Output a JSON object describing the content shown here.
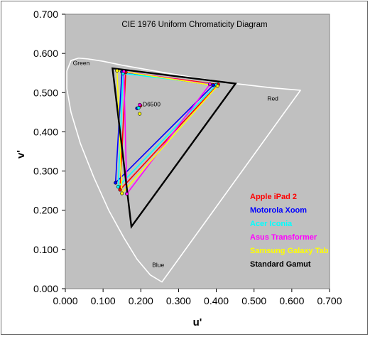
{
  "chart_data": {
    "type": "scatter",
    "title": "CIE 1976 Uniform Chromaticity Diagram",
    "xlabel": "u'",
    "ylabel": "v'",
    "xlim": [
      0.0,
      0.7
    ],
    "ylim": [
      0.0,
      0.7
    ],
    "x_ticks": [
      "0.000",
      "0.100",
      "0.200",
      "0.300",
      "0.400",
      "0.500",
      "0.600",
      "0.700"
    ],
    "y_ticks": [
      "0.000",
      "0.100",
      "0.200",
      "0.300",
      "0.400",
      "0.500",
      "0.600",
      "0.700"
    ],
    "plot_background": "#c0c0c0",
    "grid": false,
    "legend_position": "bottom-right",
    "annotations": [
      {
        "text": "Green",
        "x": 0.02,
        "y": 0.57
      },
      {
        "text": "Red",
        "x": 0.535,
        "y": 0.48
      },
      {
        "text": "Blue",
        "x": 0.23,
        "y": 0.055
      },
      {
        "text": "D6500",
        "x": 0.205,
        "y": 0.465
      }
    ],
    "spectral_locus": {
      "color": "#ffffff",
      "points": [
        [
          0.256,
          0.017
        ],
        [
          0.225,
          0.035
        ],
        [
          0.19,
          0.075
        ],
        [
          0.155,
          0.13
        ],
        [
          0.115,
          0.2
        ],
        [
          0.075,
          0.285
        ],
        [
          0.04,
          0.37
        ],
        [
          0.015,
          0.45
        ],
        [
          0.004,
          0.51
        ],
        [
          0.004,
          0.555
        ],
        [
          0.015,
          0.582
        ],
        [
          0.035,
          0.588
        ],
        [
          0.06,
          0.586
        ],
        [
          0.1,
          0.58
        ],
        [
          0.15,
          0.57
        ],
        [
          0.25,
          0.553
        ],
        [
          0.35,
          0.537
        ],
        [
          0.45,
          0.523
        ],
        [
          0.55,
          0.512
        ],
        [
          0.623,
          0.506
        ]
      ]
    },
    "series": [
      {
        "name": "Apple iPad 2",
        "color": "#ff0000",
        "points": [
          [
            0.405,
            0.521
          ],
          [
            0.145,
            0.252
          ],
          [
            0.16,
            0.552
          ]
        ],
        "white_point": [
          0.199,
          0.467
        ]
      },
      {
        "name": "Motorola Xoom",
        "color": "#0000ff",
        "points": [
          [
            0.392,
            0.519
          ],
          [
            0.133,
            0.27
          ],
          [
            0.15,
            0.553
          ]
        ],
        "white_point": [
          0.19,
          0.46
        ]
      },
      {
        "name": "Acer Iconia",
        "color": "#00ffff",
        "points": [
          [
            0.4,
            0.52
          ],
          [
            0.14,
            0.26
          ],
          [
            0.153,
            0.549
          ]
        ],
        "white_point": [
          0.194,
          0.461
        ]
      },
      {
        "name": "Asus Transformer",
        "color": "#ff00ff",
        "points": [
          [
            0.383,
            0.521
          ],
          [
            0.163,
            0.242
          ],
          [
            0.155,
            0.554
          ]
        ],
        "white_point": [
          0.197,
          0.469
        ]
      },
      {
        "name": "Samsung Galaxy Tab",
        "color": "#ffff00",
        "points": [
          [
            0.403,
            0.517
          ],
          [
            0.15,
            0.243
          ],
          [
            0.137,
            0.556
          ]
        ],
        "white_point": [
          0.197,
          0.446
        ]
      },
      {
        "name": "Standard Gamut",
        "color": "#000000",
        "points": [
          [
            0.451,
            0.523
          ],
          [
            0.175,
            0.158
          ],
          [
            0.125,
            0.562
          ]
        ],
        "white_point": null
      }
    ]
  }
}
